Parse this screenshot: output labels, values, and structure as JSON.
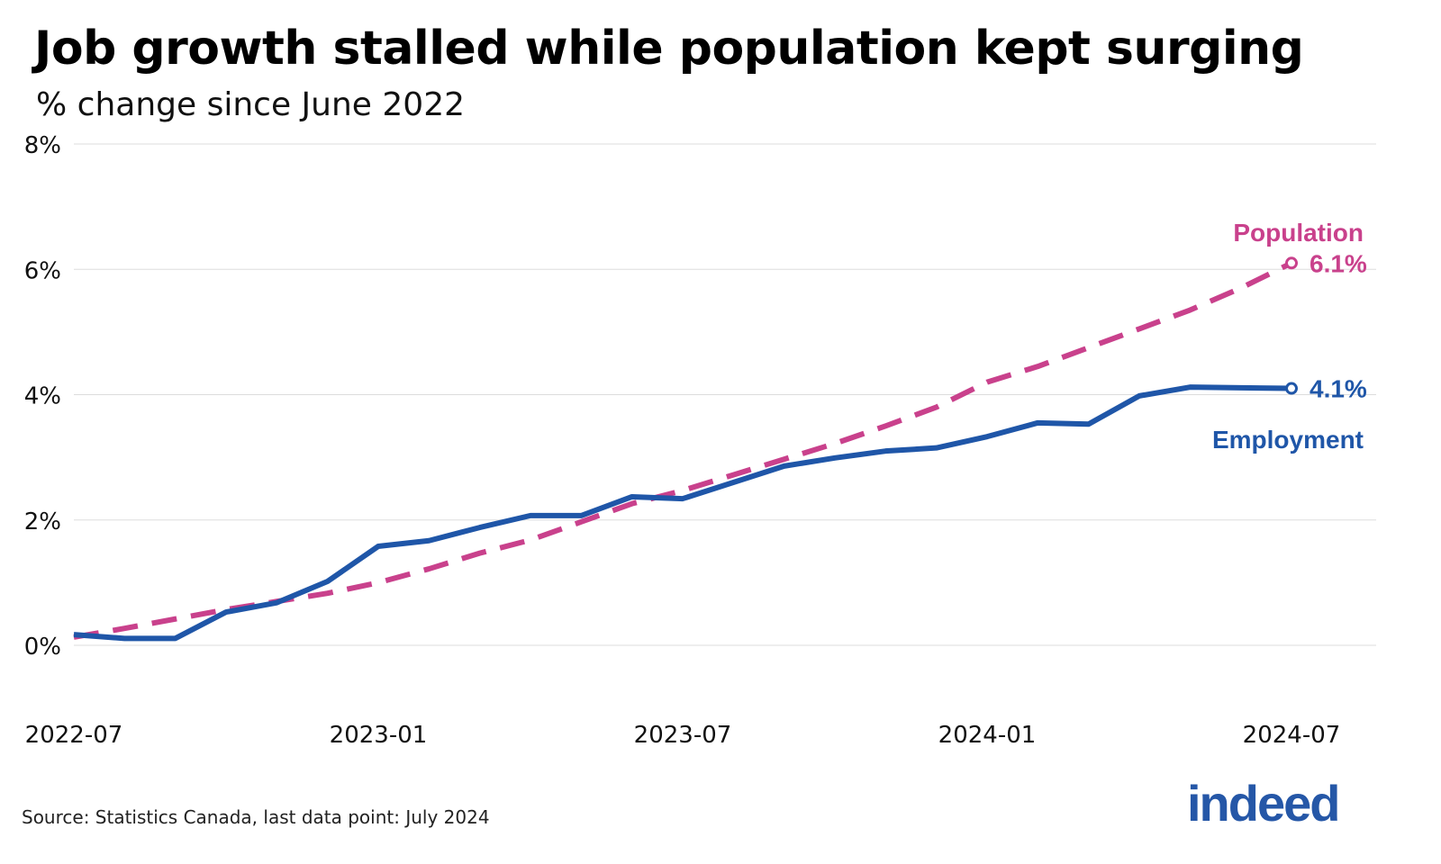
{
  "title": "Job growth stalled while population kept surging",
  "subtitle": "% change since June 2022",
  "source": "Source: Statistics Canada, last data point: July 2024",
  "logo_text": "indeed",
  "colors": {
    "population": "#c9418c",
    "employment": "#1f56a8",
    "grid": "#dddddd"
  },
  "chart_data": {
    "type": "line",
    "title": "Job growth stalled while population kept surging",
    "subtitle": "% change since June 2022",
    "x": [
      "2022-07",
      "2022-08",
      "2022-09",
      "2022-10",
      "2022-11",
      "2022-12",
      "2023-01",
      "2023-02",
      "2023-03",
      "2023-04",
      "2023-05",
      "2023-06",
      "2023-07",
      "2023-08",
      "2023-09",
      "2023-10",
      "2023-11",
      "2023-12",
      "2024-01",
      "2024-02",
      "2024-03",
      "2024-04",
      "2024-05",
      "2024-06",
      "2024-07"
    ],
    "x_ticks": [
      "2022-07",
      "2023-01",
      "2023-07",
      "2024-01",
      "2024-07"
    ],
    "y_ticks": [
      "0%",
      "2%",
      "4%",
      "6%",
      "8%"
    ],
    "ylim": [
      -1,
      8
    ],
    "grid": true,
    "series": [
      {
        "name": "Population",
        "style": "dashed",
        "end_label": "6.1%",
        "values": [
          0.13,
          0.27,
          0.42,
          0.57,
          0.7,
          0.83,
          1.0,
          1.22,
          1.47,
          1.68,
          1.97,
          2.26,
          2.47,
          2.72,
          2.97,
          3.22,
          3.5,
          3.8,
          4.2,
          4.45,
          4.75,
          5.05,
          5.35,
          5.7,
          6.1
        ]
      },
      {
        "name": "Employment",
        "style": "solid",
        "end_label": "4.1%",
        "values": [
          0.17,
          0.11,
          0.11,
          0.53,
          0.68,
          1.02,
          1.58,
          1.67,
          1.88,
          2.07,
          2.07,
          2.37,
          2.34,
          2.6,
          2.86,
          2.99,
          3.1,
          3.15,
          3.33,
          3.55,
          3.53,
          3.98,
          4.12,
          4.11,
          4.1
        ]
      }
    ]
  }
}
